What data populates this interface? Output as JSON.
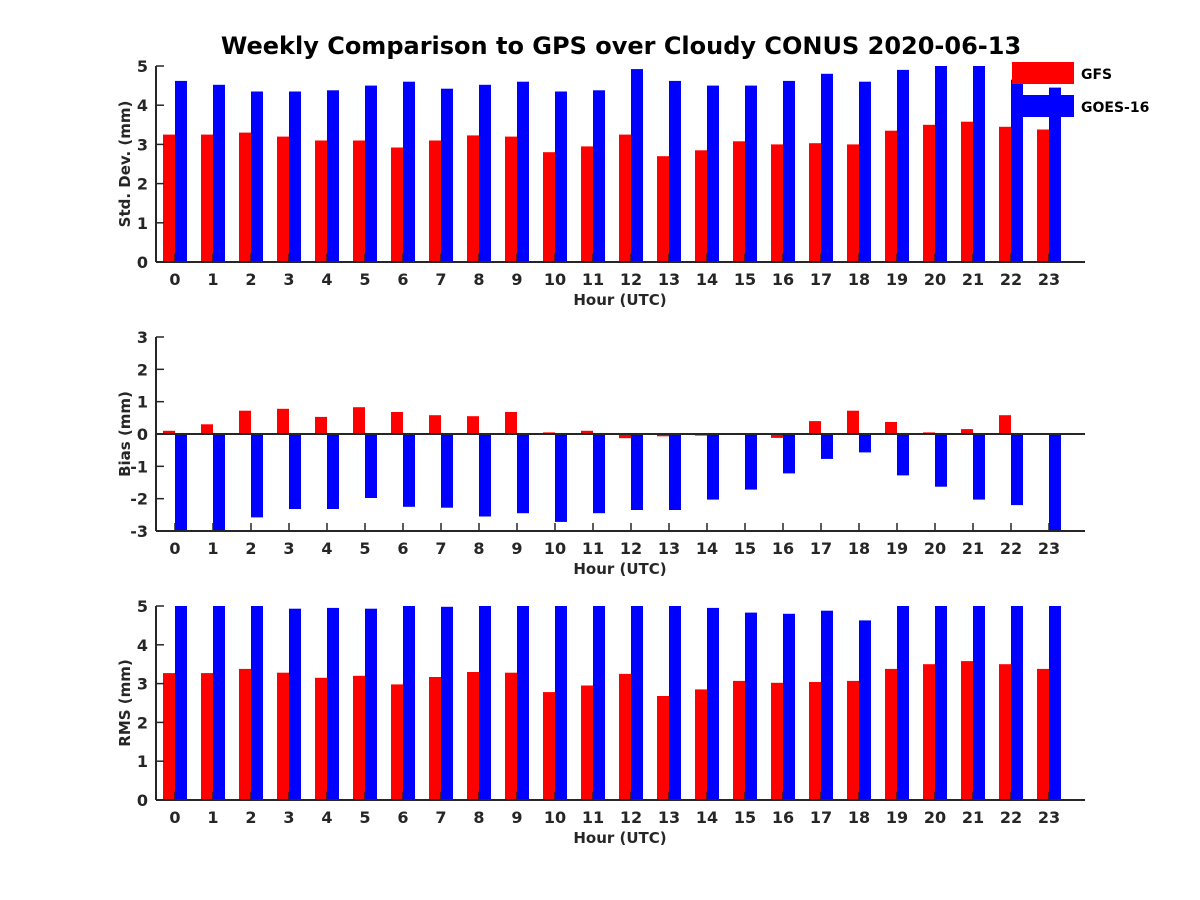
{
  "colors": {
    "gfs": "#ff0000",
    "goes": "#0000ff",
    "axis": "#262626"
  },
  "chart_data": {
    "type": "bar",
    "title": "Weekly Comparison to GPS over Cloudy CONUS 2020-06-13",
    "legend": {
      "placement": "top-right",
      "entries": [
        "GFS",
        "GOES-16"
      ]
    },
    "panels": [
      {
        "id": "std",
        "ylabel": "Std. Dev. (mm)",
        "xlabel": "Hour (UTC)",
        "ylim": [
          0,
          5
        ],
        "yticks": [
          0,
          1,
          2,
          3,
          4,
          5
        ],
        "categories": [
          "0",
          "1",
          "2",
          "3",
          "4",
          "5",
          "6",
          "7",
          "8",
          "9",
          "10",
          "11",
          "12",
          "13",
          "14",
          "15",
          "16",
          "17",
          "18",
          "19",
          "20",
          "21",
          "22",
          "23"
        ],
        "series": [
          {
            "name": "GFS",
            "values": [
              3.25,
              3.25,
              3.3,
              3.2,
              3.1,
              3.1,
              2.92,
              3.1,
              3.23,
              3.2,
              2.8,
              2.95,
              3.25,
              2.7,
              2.85,
              3.08,
              3.0,
              3.03,
              3.0,
              3.35,
              3.5,
              3.58,
              3.45,
              3.38
            ]
          },
          {
            "name": "GOES-16",
            "values": [
              4.62,
              4.52,
              4.35,
              4.35,
              4.38,
              4.5,
              4.6,
              4.42,
              4.52,
              4.6,
              4.35,
              4.38,
              4.92,
              4.62,
              4.5,
              4.5,
              4.62,
              4.8,
              4.6,
              4.9,
              5.0,
              5.0,
              4.65,
              4.45
            ]
          }
        ]
      },
      {
        "id": "bias",
        "ylabel": "Bias (mm)",
        "xlabel": "Hour (UTC)",
        "ylim": [
          -3,
          3
        ],
        "yticks": [
          -3,
          -2,
          -1,
          0,
          1,
          2,
          3
        ],
        "categories": [
          "0",
          "1",
          "2",
          "3",
          "4",
          "5",
          "6",
          "7",
          "8",
          "9",
          "10",
          "11",
          "12",
          "13",
          "14",
          "15",
          "16",
          "17",
          "18",
          "19",
          "20",
          "21",
          "22",
          "23"
        ],
        "series": [
          {
            "name": "GFS",
            "values": [
              0.1,
              0.3,
              0.72,
              0.78,
              0.53,
              0.83,
              0.68,
              0.58,
              0.55,
              0.68,
              0.05,
              0.1,
              -0.13,
              -0.07,
              -0.05,
              0.02,
              -0.12,
              0.4,
              0.72,
              0.37,
              0.05,
              0.15,
              0.58,
              -0.02
            ]
          },
          {
            "name": "GOES-16",
            "values": [
              -3.0,
              -3.0,
              -2.58,
              -2.32,
              -2.32,
              -1.98,
              -2.25,
              -2.28,
              -2.55,
              -2.45,
              -2.72,
              -2.45,
              -2.35,
              -2.35,
              -2.03,
              -1.72,
              -1.22,
              -0.77,
              -0.57,
              -1.28,
              -1.63,
              -2.03,
              -2.2,
              -3.0
            ]
          }
        ]
      },
      {
        "id": "rms",
        "ylabel": "RMS (mm)",
        "xlabel": "Hour (UTC)",
        "ylim": [
          0,
          5
        ],
        "yticks": [
          0,
          1,
          2,
          3,
          4,
          5
        ],
        "categories": [
          "0",
          "1",
          "2",
          "3",
          "4",
          "5",
          "6",
          "7",
          "8",
          "9",
          "10",
          "11",
          "12",
          "13",
          "14",
          "15",
          "16",
          "17",
          "18",
          "19",
          "20",
          "21",
          "22",
          "23"
        ],
        "series": [
          {
            "name": "GFS",
            "values": [
              3.27,
              3.27,
              3.38,
              3.28,
              3.15,
              3.2,
              2.98,
              3.17,
              3.3,
              3.28,
              2.78,
              2.95,
              3.25,
              2.68,
              2.85,
              3.07,
              3.02,
              3.04,
              3.07,
              3.38,
              3.5,
              3.58,
              3.5,
              3.38
            ]
          },
          {
            "name": "GOES-16",
            "values": [
              5.0,
              5.0,
              5.0,
              4.93,
              4.95,
              4.93,
              5.0,
              4.98,
              5.0,
              5.0,
              5.0,
              5.0,
              5.0,
              5.0,
              4.95,
              4.83,
              4.8,
              4.88,
              4.63,
              5.0,
              5.0,
              5.0,
              5.0,
              5.0
            ]
          }
        ]
      }
    ]
  }
}
